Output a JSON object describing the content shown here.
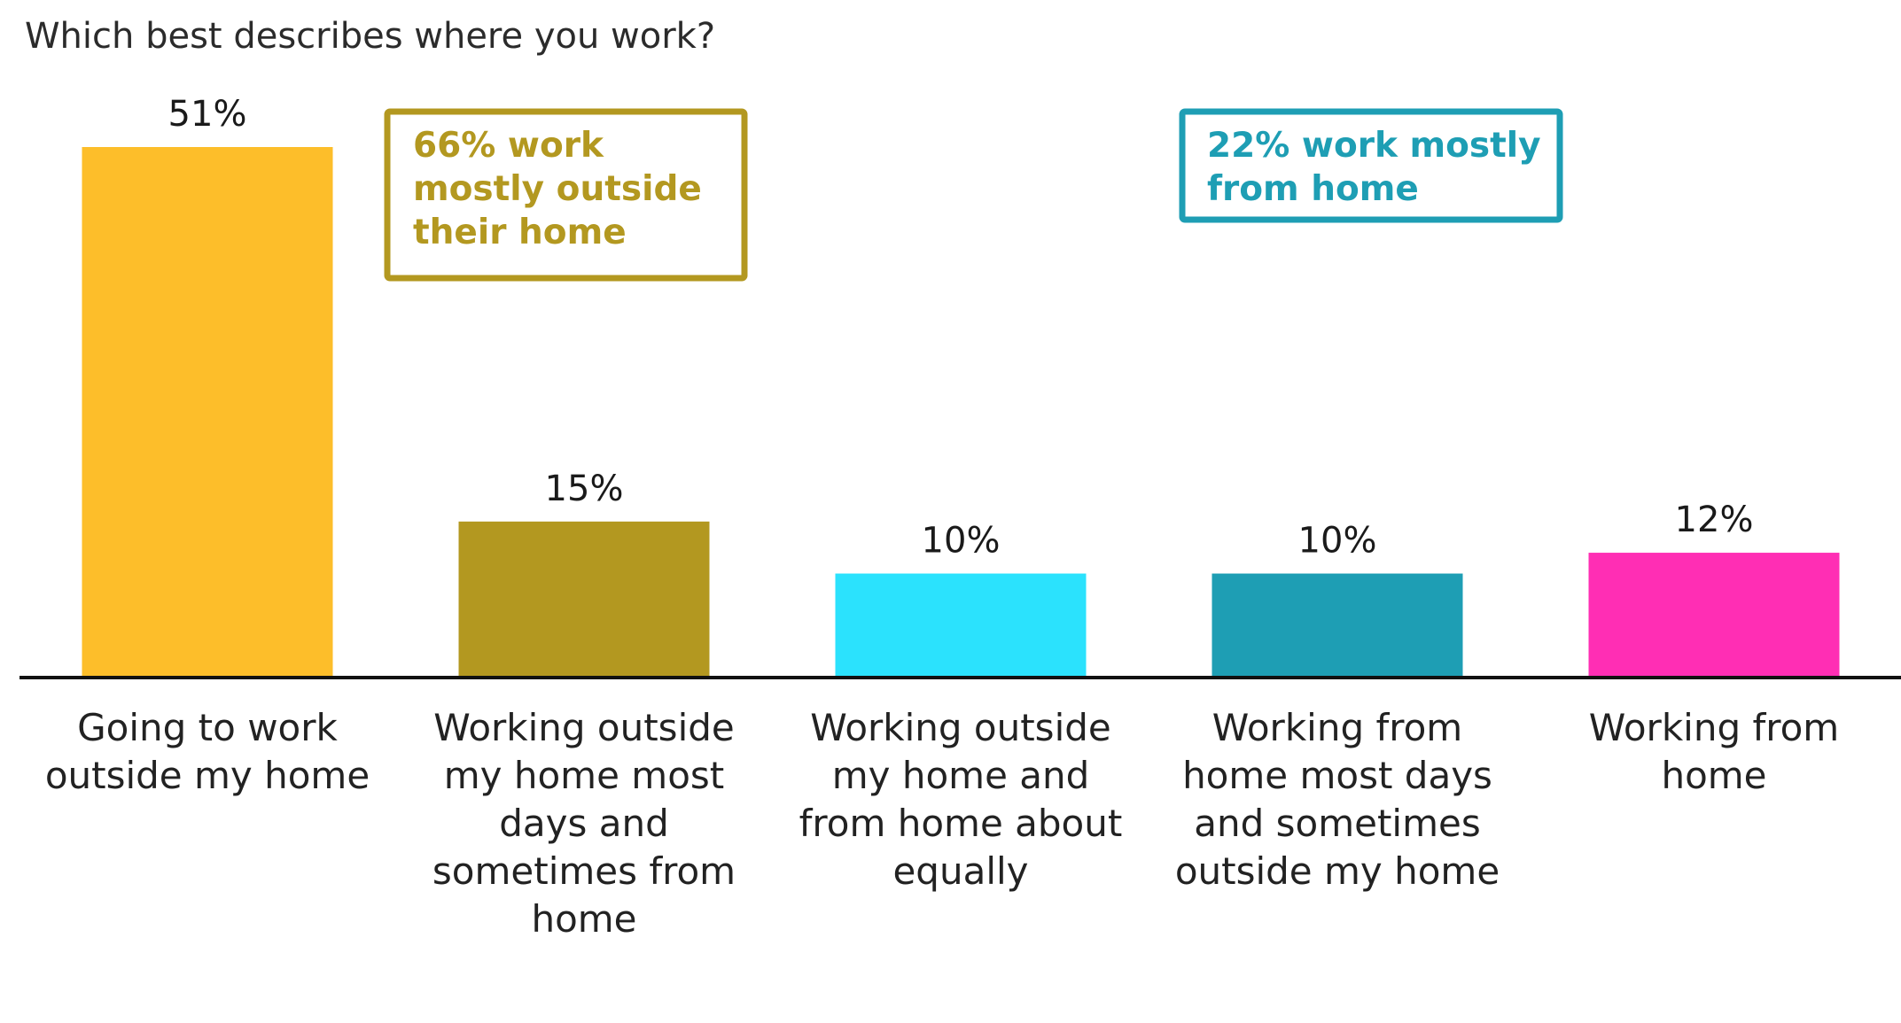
{
  "chart_data": {
    "type": "bar",
    "title": "Which best describes where you work?",
    "categories": [
      [
        "Going to work",
        "outside my home"
      ],
      [
        "Working outside",
        "my home most",
        "days and",
        "sometimes from",
        "home"
      ],
      [
        "Working outside",
        "my home and",
        "from home about",
        "equally"
      ],
      [
        "Working from",
        "home most days",
        "and sometimes",
        "outside my home"
      ],
      [
        "Working from",
        "home"
      ]
    ],
    "values": [
      51,
      15,
      10,
      10,
      12
    ],
    "value_labels": [
      "51%",
      "15%",
      "10%",
      "10%",
      "12%"
    ],
    "colors": [
      "#FDBE2A",
      "#B39820",
      "#2BE2FD",
      "#1E9EB4",
      "#FF2EB4"
    ],
    "ylim": [
      0,
      51
    ],
    "xlabel": "",
    "ylabel": "",
    "grid": false,
    "annotations": [
      {
        "lines": [
          "66% work",
          "mostly outside",
          "their home"
        ],
        "color": "#B39820"
      },
      {
        "lines": [
          "22% work mostly",
          "from home"
        ],
        "color": "#1E9EB4"
      }
    ]
  }
}
